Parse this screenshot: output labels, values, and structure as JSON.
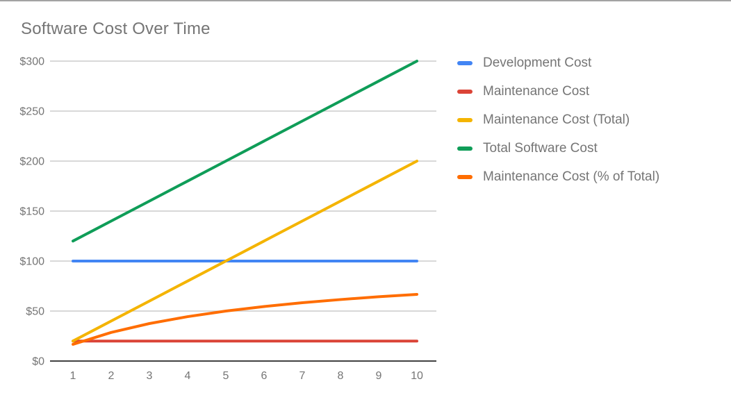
{
  "chart_data": {
    "type": "line",
    "title": "Software Cost Over Time",
    "x": [
      1,
      2,
      3,
      4,
      5,
      6,
      7,
      8,
      9,
      10
    ],
    "x_axis": {
      "tick_labels": [
        "1",
        "2",
        "3",
        "4",
        "5",
        "6",
        "7",
        "8",
        "9",
        "10"
      ]
    },
    "y_axis": {
      "ticks": [
        {
          "value": 0,
          "label": "$0"
        },
        {
          "value": 50,
          "label": "$50"
        },
        {
          "value": 100,
          "label": "$100"
        },
        {
          "value": 150,
          "label": "$150"
        },
        {
          "value": 200,
          "label": "$200"
        },
        {
          "value": 250,
          "label": "$250"
        },
        {
          "value": 300,
          "label": "$300"
        }
      ],
      "ylim": [
        0,
        300
      ]
    },
    "grid": true,
    "legend_position": "right",
    "series": [
      {
        "name": "Development Cost",
        "color": "#4285F4",
        "values": [
          100,
          100,
          100,
          100,
          100,
          100,
          100,
          100,
          100,
          100
        ]
      },
      {
        "name": "Maintenance Cost",
        "color": "#DB4437",
        "values": [
          20,
          20,
          20,
          20,
          20,
          20,
          20,
          20,
          20,
          20
        ]
      },
      {
        "name": "Maintenance Cost (Total)",
        "color": "#F4B400",
        "values": [
          20,
          40,
          60,
          80,
          100,
          120,
          140,
          160,
          180,
          200
        ]
      },
      {
        "name": "Total Software Cost",
        "color": "#0F9D58",
        "values": [
          120,
          140,
          160,
          180,
          200,
          220,
          240,
          260,
          280,
          300
        ]
      },
      {
        "name": "Maintenance Cost (% of Total)",
        "color": "#FF6D00",
        "values": [
          16.7,
          28.6,
          37.5,
          44.4,
          50,
          54.5,
          58.3,
          61.5,
          64.3,
          66.7
        ]
      }
    ],
    "style": {
      "grid_color": "#cccccc",
      "axis_color": "#424242",
      "text_color": "#757575",
      "line_width": 4
    }
  }
}
